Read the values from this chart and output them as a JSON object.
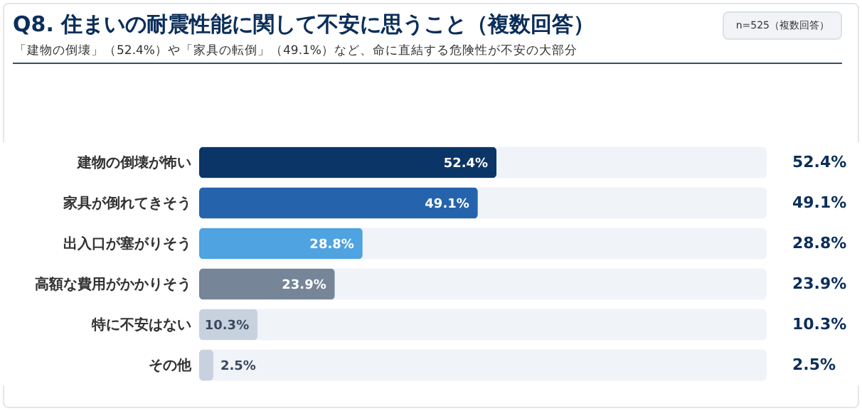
{
  "chart_data": {
    "type": "bar",
    "orientation": "horizontal",
    "title": "Q8. 住まいの耐震性能に関して不安に思うこと（複数回答）",
    "subtitle": "「建物の倒壊」（52.4%）や「家具の転倒」（49.1%）など、命に直結する危険性が不安の大部分",
    "annotations": [
      "n=525（複数回答）"
    ],
    "categories": [
      "建物の倒壊が怖い",
      "家具が倒れてきそう",
      "出入口が塞がりそう",
      "高額な費用がかかりそう",
      "特に不安はない",
      "その他"
    ],
    "values": [
      52.4,
      49.1,
      28.8,
      23.9,
      10.3,
      2.5
    ],
    "colors": [
      "#0b3566",
      "#2563ad",
      "#4ea3e0",
      "#768598",
      "#c8d2df",
      "#c8d2df"
    ],
    "value_labels": [
      "52.4%",
      "49.1%",
      "28.8%",
      "23.9%",
      "10.3%",
      "2.5%"
    ],
    "xlim": [
      0,
      100
    ]
  }
}
